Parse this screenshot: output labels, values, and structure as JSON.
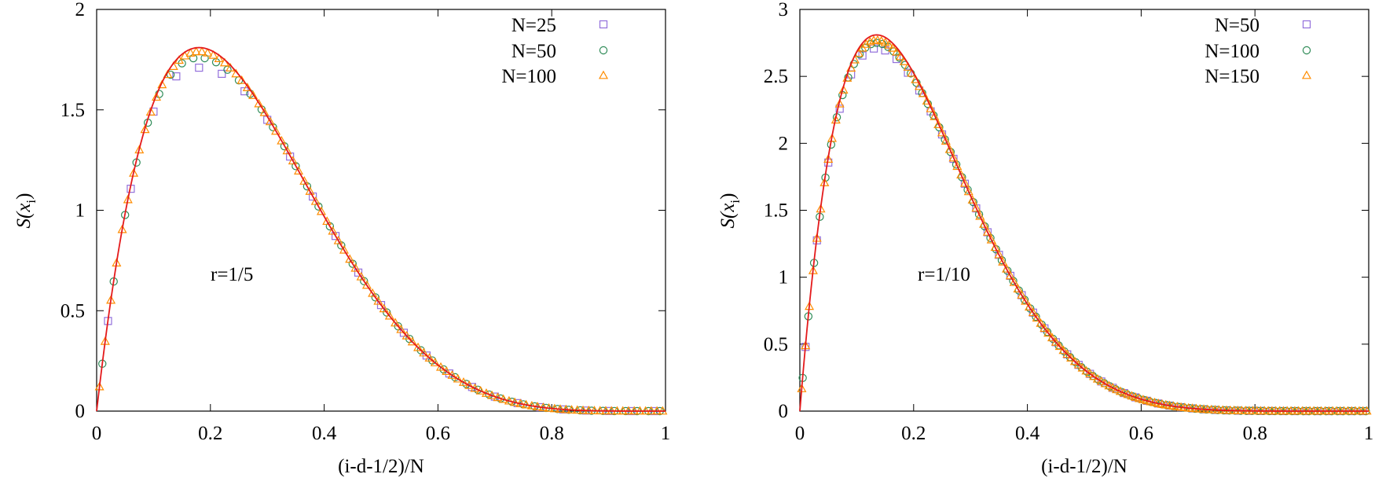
{
  "chart_data": [
    {
      "type": "scatter",
      "panel": "left",
      "xlabel": "(i-d-1/2)/N",
      "ylabel_main": "S(x",
      "ylabel_sub": "i",
      "ylabel_close": ")",
      "xlim": [
        0,
        1
      ],
      "ylim": [
        0,
        2
      ],
      "xticks": [
        0,
        0.2,
        0.4,
        0.6,
        0.8,
        1
      ],
      "xtick_labels": [
        "0",
        "0.2",
        "0.4",
        "0.6",
        "0.8",
        "1"
      ],
      "yticks": [
        0,
        0.5,
        1,
        1.5,
        2
      ],
      "ytick_labels": [
        "0",
        "0.5",
        "1",
        "1.5",
        "2"
      ],
      "annotation": "r=1/5",
      "curve": {
        "peak_x": 0.18,
        "peak_y": 1.81,
        "color": "#e41a1c"
      },
      "series": [
        {
          "name": "N=25",
          "marker": "square",
          "color": "#9370db",
          "n": 25,
          "offset": -0.1
        },
        {
          "name": "N=50",
          "marker": "circle",
          "color": "#2e8b57",
          "n": 50,
          "offset": -0.05
        },
        {
          "name": "N=100",
          "marker": "triangle",
          "color": "#ff8c00",
          "n": 100,
          "offset": -0.02
        }
      ],
      "legend_position": "top-right"
    },
    {
      "type": "scatter",
      "panel": "right",
      "xlabel": "(i-d-1/2)/N",
      "ylabel_main": "S(x",
      "ylabel_sub": "i",
      "ylabel_close": ")",
      "xlim": [
        0,
        1
      ],
      "ylim": [
        0,
        3
      ],
      "xticks": [
        0,
        0.2,
        0.4,
        0.6,
        0.8,
        1
      ],
      "xtick_labels": [
        "0",
        "0.2",
        "0.4",
        "0.6",
        "0.8",
        "1"
      ],
      "yticks": [
        0,
        0.5,
        1,
        1.5,
        2,
        2.5,
        3
      ],
      "ytick_labels": [
        "0",
        "0.5",
        "1",
        "1.5",
        "2",
        "2.5",
        "3"
      ],
      "annotation": "r=1/10",
      "curve": {
        "peak_x": 0.135,
        "peak_y": 2.81,
        "color": "#e41a1c"
      },
      "series": [
        {
          "name": "N=50",
          "marker": "square",
          "color": "#9370db",
          "n": 50,
          "offset": -0.1
        },
        {
          "name": "N=100",
          "marker": "circle",
          "color": "#2e8b57",
          "n": 100,
          "offset": -0.06
        },
        {
          "name": "N=150",
          "marker": "triangle",
          "color": "#ff8c00",
          "n": 150,
          "offset": -0.04
        }
      ],
      "legend_position": "top-right"
    }
  ]
}
